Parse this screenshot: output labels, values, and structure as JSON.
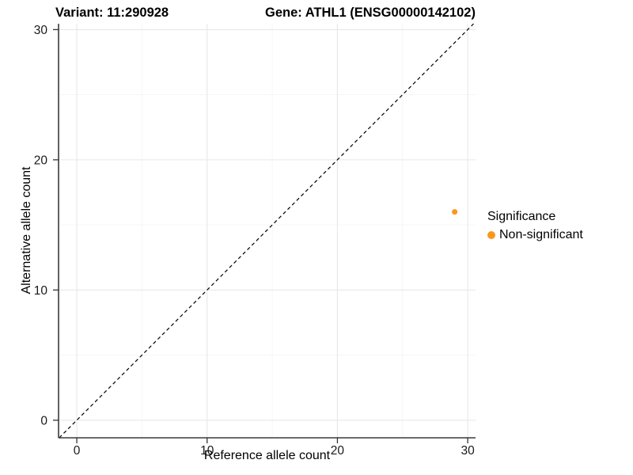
{
  "chart_data": {
    "type": "scatter",
    "title_left": "Variant: 11:290928",
    "title_right": "Gene: ATHL1 (ENSG00000142102)",
    "xlabel": "Reference allele count",
    "ylabel": "Alternative allele count",
    "xticks": [
      0,
      10,
      20,
      30
    ],
    "yticks": [
      0,
      10,
      20,
      30
    ],
    "minor_xticks": [
      5,
      15,
      25
    ],
    "minor_yticks": [
      5,
      15,
      25
    ],
    "xlim": [
      -1.4,
      30.6
    ],
    "ylim": [
      -1.35,
      30.45
    ],
    "grid": "on",
    "points": [
      {
        "x": 29,
        "y": 16,
        "series": "Non-significant"
      }
    ],
    "identity_line": {
      "slope": 1,
      "intercept": 0,
      "style": "dashed"
    },
    "legend": {
      "position": "right",
      "title": "Significance",
      "items": [
        {
          "label": "Non-significant",
          "color": "#F9971E"
        }
      ]
    },
    "colors": {
      "point": "#F9971E",
      "grid_major": "#E8E8E8",
      "grid_minor": "#F4F4F4",
      "axis_line": "#3A3A3A",
      "tick": "#333333",
      "dashed_line": "#000000",
      "background": "#FFFFFF"
    }
  }
}
